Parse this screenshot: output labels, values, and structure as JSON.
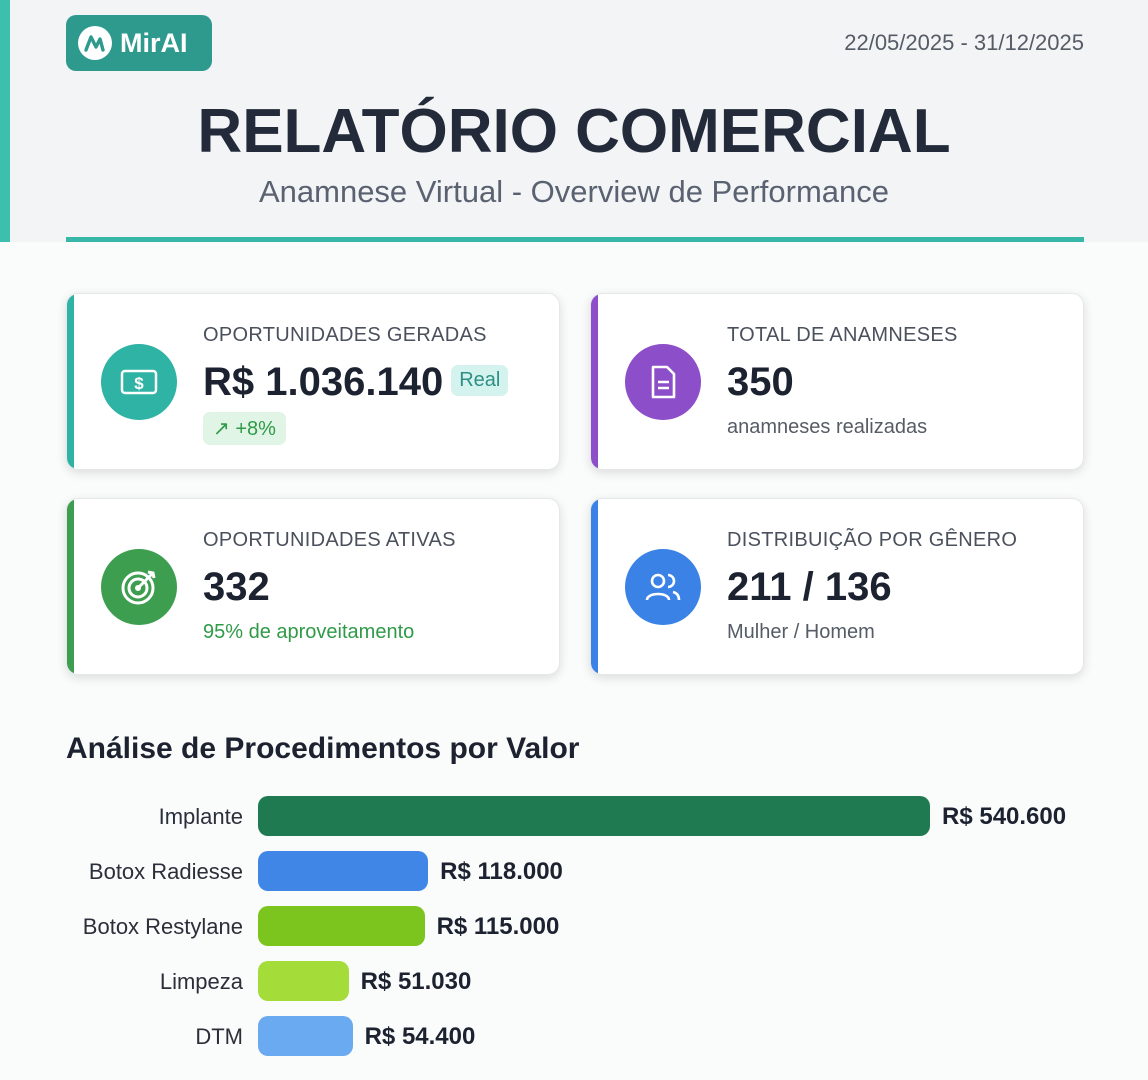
{
  "header": {
    "logo_text": "MirAI",
    "date_range": "22/05/2025 - 31/12/2025",
    "title": "RELATÓRIO COMERCIAL",
    "subtitle": "Anamnese Virtual - Overview de Performance",
    "accent": "#36b7a8"
  },
  "cards": [
    {
      "label": "OPORTUNIDADES GERADAS",
      "value": "R$ 1.036.140",
      "badge": "Real",
      "trend": "↗ +8%",
      "icon": "money-icon",
      "color": "#2fb3a4"
    },
    {
      "label": "TOTAL DE ANAMNESES",
      "value": "350",
      "sub": "anamneses realizadas",
      "icon": "document-icon",
      "color": "#8d4fc9"
    },
    {
      "label": "OPORTUNIDADES ATIVAS",
      "value": "332",
      "sub": "95% de aproveitamento",
      "icon": "target-icon",
      "color": "#3e9e4f"
    },
    {
      "label": "DISTRIBUIÇÃO POR GÊNERO",
      "value": "211 / 136",
      "sub": "Mulher / Homem",
      "icon": "users-icon",
      "color": "#3b82e6"
    }
  ],
  "chart_data": {
    "type": "bar",
    "orientation": "horizontal",
    "title": "Análise de Procedimentos por Valor",
    "categories": [
      "Implante",
      "Botox Radiesse",
      "Botox Restylane",
      "Limpeza",
      "DTM"
    ],
    "values": [
      540600,
      118000,
      115000,
      51030,
      54400
    ],
    "value_labels": [
      "R$ 540.600",
      "R$ 118.000",
      "R$ 115.000",
      "R$ 51.030",
      "R$ 54.400"
    ],
    "colors": [
      "#1f7a52",
      "#3f86e6",
      "#7cc41e",
      "#a4dd3a",
      "#6aaaf0"
    ],
    "grid": false
  }
}
